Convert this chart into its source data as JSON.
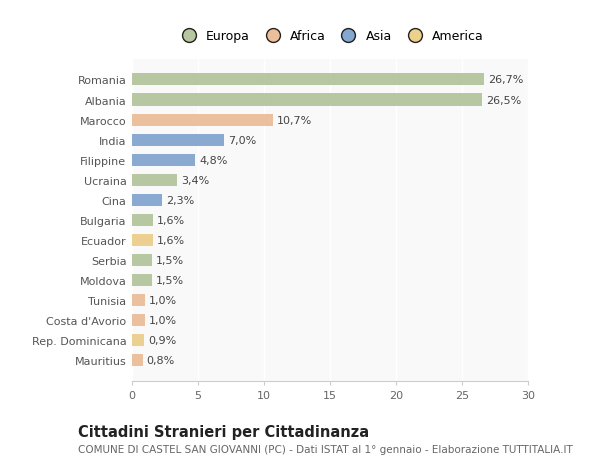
{
  "categories": [
    "Romania",
    "Albania",
    "Marocco",
    "India",
    "Filippine",
    "Ucraina",
    "Cina",
    "Bulgaria",
    "Ecuador",
    "Serbia",
    "Moldova",
    "Tunisia",
    "Costa d'Avorio",
    "Rep. Dominicana",
    "Mauritius"
  ],
  "values": [
    26.7,
    26.5,
    10.7,
    7.0,
    4.8,
    3.4,
    2.3,
    1.6,
    1.6,
    1.5,
    1.5,
    1.0,
    1.0,
    0.9,
    0.8
  ],
  "labels": [
    "26,7%",
    "26,5%",
    "10,7%",
    "7,0%",
    "4,8%",
    "3,4%",
    "2,3%",
    "1,6%",
    "1,6%",
    "1,5%",
    "1,5%",
    "1,0%",
    "1,0%",
    "0,9%",
    "0,8%"
  ],
  "colors": [
    "#a8bc8f",
    "#a8bc8f",
    "#e8b48a",
    "#7098c8",
    "#7098c8",
    "#a8bc8f",
    "#7098c8",
    "#a8bc8f",
    "#e8c87a",
    "#a8bc8f",
    "#a8bc8f",
    "#e8b48a",
    "#e8b48a",
    "#e8c87a",
    "#e8b48a"
  ],
  "legend_labels": [
    "Europa",
    "Africa",
    "Asia",
    "America"
  ],
  "legend_colors": [
    "#a8bc8f",
    "#e8b48a",
    "#7098c8",
    "#e8c87a"
  ],
  "title": "Cittadini Stranieri per Cittadinanza",
  "subtitle": "COMUNE DI CASTEL SAN GIOVANNI (PC) - Dati ISTAT al 1° gennaio - Elaborazione TUTTITALIA.IT",
  "xlim": [
    0,
    30
  ],
  "xticks": [
    0,
    5,
    10,
    15,
    20,
    25,
    30
  ],
  "background_color": "#ffffff",
  "plot_bg_color": "#f9f9f9",
  "bar_height": 0.6,
  "label_fontsize": 8,
  "tick_fontsize": 8,
  "title_fontsize": 10.5,
  "subtitle_fontsize": 7.5
}
